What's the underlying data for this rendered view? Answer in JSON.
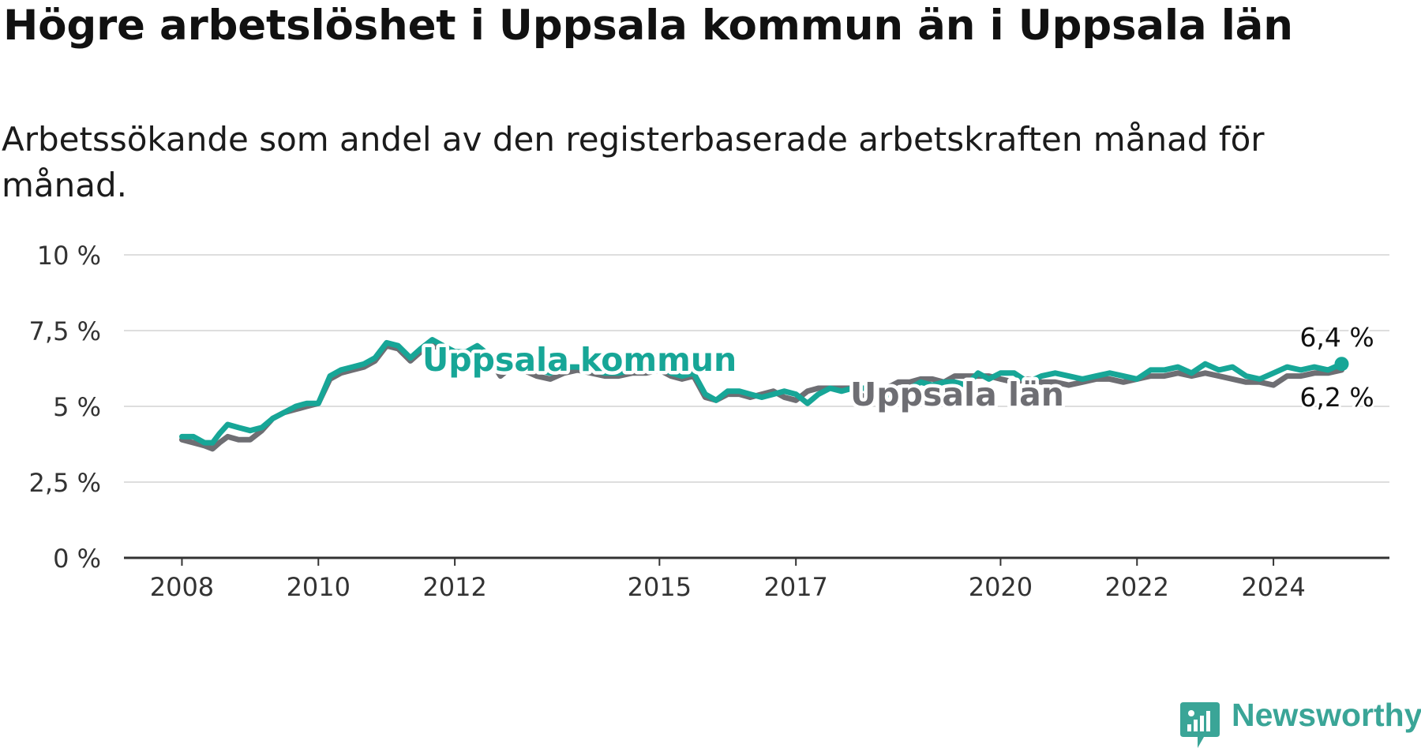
{
  "title": "Högre arbetslöshet i Uppsala kommun än i Uppsala län",
  "subtitle": "Arbetssökande som andel av den registerbaserade arbetskraften månad för månad.",
  "brand": {
    "name": "Newsworthy",
    "color": "#3aa597"
  },
  "chart_data": {
    "type": "line",
    "title": "Högre arbetslöshet i Uppsala kommun än i Uppsala län",
    "subtitle": "Arbetssökande som andel av den registerbaserade arbetskraften månad för månad.",
    "xlabel": "",
    "ylabel": "",
    "ylim": [
      0,
      10
    ],
    "xlim": [
      2007.15,
      2025.7
    ],
    "y_ticks": [
      {
        "value": 0,
        "label": "0 %"
      },
      {
        "value": 2.5,
        "label": "2,5 %"
      },
      {
        "value": 5,
        "label": "5 %"
      },
      {
        "value": 7.5,
        "label": "7,5 %"
      },
      {
        "value": 10,
        "label": "10 %"
      }
    ],
    "x_ticks": [
      {
        "value": 2008,
        "label": "2008"
      },
      {
        "value": 2010,
        "label": "2010"
      },
      {
        "value": 2012,
        "label": "2012"
      },
      {
        "value": 2015,
        "label": "2015"
      },
      {
        "value": 2017,
        "label": "2017"
      },
      {
        "value": 2020,
        "label": "2020"
      },
      {
        "value": 2022,
        "label": "2022"
      },
      {
        "value": 2024,
        "label": "2024"
      }
    ],
    "grid": "horizontal",
    "series": [
      {
        "name": "Uppsala län",
        "color": "#6e6e73",
        "label": "Uppsala län",
        "end_label": "6,2 %",
        "points": [
          [
            2008.0,
            3.9
          ],
          [
            2008.17,
            3.8
          ],
          [
            2008.33,
            3.7
          ],
          [
            2008.45,
            3.6
          ],
          [
            2008.55,
            3.8
          ],
          [
            2008.67,
            4.0
          ],
          [
            2008.83,
            3.9
          ],
          [
            2009.0,
            3.9
          ],
          [
            2009.17,
            4.2
          ],
          [
            2009.33,
            4.6
          ],
          [
            2009.5,
            4.8
          ],
          [
            2009.67,
            4.9
          ],
          [
            2009.83,
            5.0
          ],
          [
            2010.0,
            5.1
          ],
          [
            2010.17,
            5.9
          ],
          [
            2010.33,
            6.1
          ],
          [
            2010.5,
            6.2
          ],
          [
            2010.67,
            6.3
          ],
          [
            2010.83,
            6.5
          ],
          [
            2011.0,
            7.0
          ],
          [
            2011.17,
            6.9
          ],
          [
            2011.35,
            6.5
          ],
          [
            2011.5,
            6.8
          ],
          [
            2011.67,
            7.0
          ],
          [
            2011.83,
            6.9
          ],
          [
            2012.0,
            6.7
          ],
          [
            2012.17,
            6.6
          ],
          [
            2012.33,
            6.9
          ],
          [
            2012.5,
            6.6
          ],
          [
            2012.67,
            6.0
          ],
          [
            2012.83,
            6.3
          ],
          [
            2013.0,
            6.2
          ],
          [
            2013.2,
            6.0
          ],
          [
            2013.4,
            5.9
          ],
          [
            2013.6,
            6.1
          ],
          [
            2013.8,
            6.2
          ],
          [
            2014.0,
            6.1
          ],
          [
            2014.2,
            6.0
          ],
          [
            2014.4,
            6.0
          ],
          [
            2014.6,
            6.1
          ],
          [
            2014.8,
            6.1
          ],
          [
            2015.0,
            6.2
          ],
          [
            2015.17,
            6.0
          ],
          [
            2015.33,
            5.9
          ],
          [
            2015.5,
            6.0
          ],
          [
            2015.67,
            5.3
          ],
          [
            2015.83,
            5.2
          ],
          [
            2016.0,
            5.4
          ],
          [
            2016.17,
            5.4
          ],
          [
            2016.33,
            5.3
          ],
          [
            2016.5,
            5.4
          ],
          [
            2016.67,
            5.5
          ],
          [
            2016.83,
            5.3
          ],
          [
            2017.0,
            5.2
          ],
          [
            2017.17,
            5.5
          ],
          [
            2017.33,
            5.6
          ],
          [
            2017.5,
            5.6
          ],
          [
            2017.67,
            5.6
          ],
          [
            2017.83,
            5.6
          ],
          [
            2018.0,
            5.3
          ],
          [
            2018.17,
            5.3
          ],
          [
            2018.33,
            5.6
          ],
          [
            2018.5,
            5.8
          ],
          [
            2018.67,
            5.8
          ],
          [
            2018.83,
            5.9
          ],
          [
            2019.0,
            5.9
          ],
          [
            2019.17,
            5.8
          ],
          [
            2019.33,
            6.0
          ],
          [
            2019.5,
            6.0
          ],
          [
            2019.67,
            6.0
          ],
          [
            2019.83,
            6.0
          ],
          [
            2020.0,
            5.9
          ],
          [
            2020.2,
            5.8
          ],
          [
            2020.4,
            5.9
          ],
          [
            2020.6,
            5.8
          ],
          [
            2020.8,
            5.8
          ],
          [
            2021.0,
            5.7
          ],
          [
            2021.2,
            5.8
          ],
          [
            2021.4,
            5.9
          ],
          [
            2021.6,
            5.9
          ],
          [
            2021.8,
            5.8
          ],
          [
            2022.0,
            5.9
          ],
          [
            2022.2,
            6.0
          ],
          [
            2022.4,
            6.0
          ],
          [
            2022.6,
            6.1
          ],
          [
            2022.8,
            6.0
          ],
          [
            2023.0,
            6.1
          ],
          [
            2023.2,
            6.0
          ],
          [
            2023.4,
            5.9
          ],
          [
            2023.6,
            5.8
          ],
          [
            2023.8,
            5.8
          ],
          [
            2024.0,
            5.7
          ],
          [
            2024.2,
            6.0
          ],
          [
            2024.4,
            6.0
          ],
          [
            2024.6,
            6.1
          ],
          [
            2024.8,
            6.1
          ],
          [
            2025.0,
            6.2
          ]
        ]
      },
      {
        "name": "Uppsala kommun",
        "color": "#17a697",
        "label": "Uppsala kommun",
        "end_label": "6,4 %",
        "points": [
          [
            2008.0,
            4.0
          ],
          [
            2008.17,
            4.0
          ],
          [
            2008.33,
            3.8
          ],
          [
            2008.45,
            3.8
          ],
          [
            2008.55,
            4.1
          ],
          [
            2008.67,
            4.4
          ],
          [
            2008.83,
            4.3
          ],
          [
            2009.0,
            4.2
          ],
          [
            2009.17,
            4.3
          ],
          [
            2009.33,
            4.6
          ],
          [
            2009.5,
            4.8
          ],
          [
            2009.67,
            5.0
          ],
          [
            2009.83,
            5.1
          ],
          [
            2010.0,
            5.1
          ],
          [
            2010.17,
            6.0
          ],
          [
            2010.33,
            6.2
          ],
          [
            2010.5,
            6.3
          ],
          [
            2010.67,
            6.4
          ],
          [
            2010.83,
            6.6
          ],
          [
            2011.0,
            7.1
          ],
          [
            2011.17,
            7.0
          ],
          [
            2011.35,
            6.6
          ],
          [
            2011.5,
            6.9
          ],
          [
            2011.67,
            7.2
          ],
          [
            2011.83,
            7.0
          ],
          [
            2012.0,
            6.8
          ],
          [
            2012.17,
            6.8
          ],
          [
            2012.33,
            7.0
          ],
          [
            2012.5,
            6.7
          ],
          [
            2012.67,
            6.2
          ],
          [
            2012.83,
            6.6
          ],
          [
            2013.0,
            6.4
          ],
          [
            2013.2,
            6.2
          ],
          [
            2013.4,
            6.1
          ],
          [
            2013.6,
            6.3
          ],
          [
            2013.8,
            6.3
          ],
          [
            2014.0,
            6.2
          ],
          [
            2014.2,
            6.1
          ],
          [
            2014.4,
            6.1
          ],
          [
            2014.6,
            6.2
          ],
          [
            2014.8,
            6.2
          ],
          [
            2015.0,
            6.3
          ],
          [
            2015.17,
            6.1
          ],
          [
            2015.33,
            6.0
          ],
          [
            2015.5,
            6.1
          ],
          [
            2015.67,
            5.4
          ],
          [
            2015.83,
            5.2
          ],
          [
            2016.0,
            5.5
          ],
          [
            2016.17,
            5.5
          ],
          [
            2016.33,
            5.4
          ],
          [
            2016.5,
            5.3
          ],
          [
            2016.67,
            5.4
          ],
          [
            2016.83,
            5.5
          ],
          [
            2017.0,
            5.4
          ],
          [
            2017.17,
            5.1
          ],
          [
            2017.33,
            5.4
          ],
          [
            2017.5,
            5.6
          ],
          [
            2017.67,
            5.5
          ],
          [
            2017.83,
            5.6
          ],
          [
            2018.0,
            5.6
          ],
          [
            2018.17,
            5.6
          ],
          [
            2018.33,
            5.4
          ],
          [
            2018.5,
            5.3
          ],
          [
            2018.67,
            5.6
          ],
          [
            2018.83,
            5.8
          ],
          [
            2019.0,
            5.7
          ],
          [
            2019.17,
            5.8
          ],
          [
            2019.33,
            5.8
          ],
          [
            2019.5,
            5.7
          ],
          [
            2019.67,
            6.1
          ],
          [
            2019.83,
            5.9
          ],
          [
            2020.0,
            6.1
          ],
          [
            2020.2,
            6.1
          ],
          [
            2020.4,
            5.8
          ],
          [
            2020.6,
            6.0
          ],
          [
            2020.8,
            6.1
          ],
          [
            2021.0,
            6.0
          ],
          [
            2021.2,
            5.9
          ],
          [
            2021.4,
            6.0
          ],
          [
            2021.6,
            6.1
          ],
          [
            2021.8,
            6.0
          ],
          [
            2022.0,
            5.9
          ],
          [
            2022.2,
            6.2
          ],
          [
            2022.4,
            6.2
          ],
          [
            2022.6,
            6.3
          ],
          [
            2022.8,
            6.1
          ],
          [
            2023.0,
            6.4
          ],
          [
            2023.2,
            6.2
          ],
          [
            2023.4,
            6.3
          ],
          [
            2023.6,
            6.0
          ],
          [
            2023.8,
            5.9
          ],
          [
            2024.0,
            6.1
          ],
          [
            2024.2,
            6.3
          ],
          [
            2024.4,
            6.2
          ],
          [
            2024.6,
            6.3
          ],
          [
            2024.8,
            6.2
          ],
          [
            2025.0,
            6.4
          ]
        ]
      }
    ]
  }
}
